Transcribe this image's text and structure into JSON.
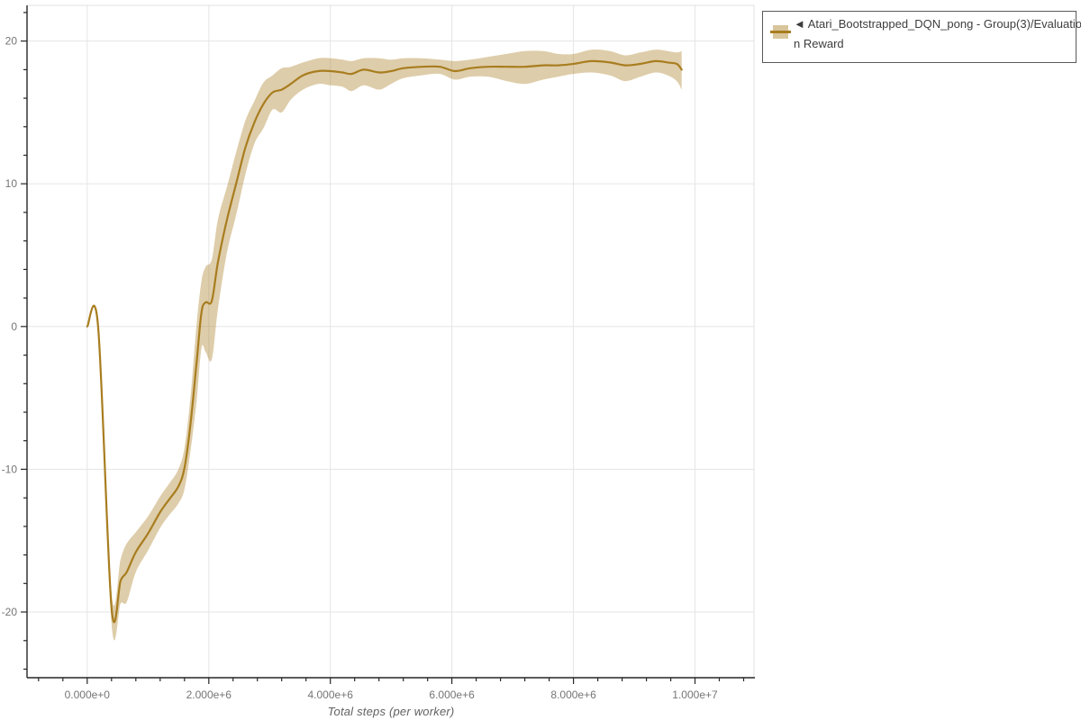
{
  "figure": {
    "background": "#ffffff",
    "grid_color": "#e5e5e5",
    "plot_border_color": "#e0e0e0",
    "axis_color": "#262626",
    "tick_label_color": "#757575",
    "axis_title_color": "#616161"
  },
  "legend": {
    "full_label": "◄ Atari_Bootstrapped_DQN_pong - Group(3)/Evaluation Reward",
    "lines": [
      "◄ Atari_Bootstrapped_DQN_pong - Group(3)/Evaluatio",
      "n Reward"
    ],
    "border_color": "#595959",
    "swatch_band_color": "#d9c59c",
    "swatch_line_color": "#a87d1f"
  },
  "chart_data": {
    "type": "line",
    "title": "",
    "xlabel": "Total steps (per worker)",
    "ylabel": "",
    "legend_position": "top-right-outside",
    "grid": true,
    "xlim_e6": [
      -0.99,
      10.97
    ],
    "ylim": [
      -24.6,
      22.5
    ],
    "x_major_ticks_e6": [
      0,
      2,
      4,
      6,
      8,
      10
    ],
    "x_tick_labels": [
      "0.000e+0",
      "2.000e+6",
      "4.000e+6",
      "6.000e+6",
      "8.000e+6",
      "1.000e+7"
    ],
    "x_minor_step_e6": 0.4,
    "y_major_ticks": [
      -20,
      -10,
      0,
      10,
      20
    ],
    "y_tick_labels": [
      "-20",
      "-10",
      "0",
      "10",
      "20"
    ],
    "y_minor_step": 2,
    "series": [
      {
        "name": "Atari_Bootstrapped_DQN_pong - Group(3)/Evaluation Reward",
        "color": "#a87d1f",
        "band_color": "rgba(169,124,32,0.38)",
        "x_e6": [
          0.0,
          0.18,
          0.4,
          0.55,
          0.65,
          0.8,
          1.0,
          1.2,
          1.35,
          1.5,
          1.6,
          1.7,
          1.8,
          1.88,
          1.95,
          2.05,
          2.15,
          2.3,
          2.45,
          2.6,
          2.75,
          2.9,
          3.05,
          3.2,
          3.35,
          3.55,
          3.8,
          4.0,
          4.2,
          4.35,
          4.55,
          4.8,
          5.0,
          5.2,
          5.5,
          5.8,
          6.05,
          6.3,
          6.6,
          6.9,
          7.2,
          7.5,
          7.75,
          8.0,
          8.3,
          8.6,
          8.85,
          9.1,
          9.35,
          9.55,
          9.7,
          9.78
        ],
        "mean": [
          0,
          0,
          -19.7,
          -17.8,
          -17.2,
          -15.8,
          -14.5,
          -13.0,
          -12.1,
          -11.2,
          -9.9,
          -6.8,
          -2.5,
          1.0,
          1.7,
          1.8,
          4.5,
          7.5,
          10.0,
          12.5,
          14.3,
          15.6,
          16.4,
          16.6,
          17.0,
          17.6,
          17.9,
          17.9,
          17.8,
          17.7,
          18.0,
          17.8,
          17.9,
          18.1,
          18.2,
          18.2,
          17.9,
          18.1,
          18.2,
          18.2,
          18.2,
          18.3,
          18.3,
          18.4,
          18.6,
          18.5,
          18.3,
          18.4,
          18.6,
          18.5,
          18.4,
          18.0
        ],
        "lower": [
          0,
          0,
          -20.8,
          -19.4,
          -19.3,
          -17.2,
          -15.7,
          -14.1,
          -13.2,
          -12.4,
          -11.4,
          -8.7,
          -5.2,
          -1.5,
          -1.8,
          -2.3,
          1.2,
          5.2,
          7.8,
          10.6,
          12.8,
          13.9,
          15.2,
          15.0,
          15.9,
          16.6,
          17.0,
          16.9,
          16.8,
          16.5,
          16.9,
          16.6,
          17.0,
          17.4,
          17.6,
          17.7,
          17.3,
          17.5,
          17.5,
          17.2,
          17.0,
          17.3,
          17.5,
          17.7,
          17.8,
          17.6,
          17.2,
          17.5,
          17.8,
          17.6,
          17.2,
          16.6
        ],
        "upper": [
          0,
          0,
          -18.7,
          -16.3,
          -15.2,
          -14.4,
          -13.3,
          -11.9,
          -11.0,
          -10.0,
          -8.5,
          -4.9,
          0.2,
          3.2,
          4.2,
          4.7,
          7.5,
          9.8,
          12.2,
          14.4,
          15.8,
          17.1,
          17.6,
          18.1,
          18.2,
          18.5,
          18.8,
          18.8,
          18.7,
          18.6,
          18.8,
          18.8,
          18.7,
          18.8,
          18.8,
          18.7,
          18.6,
          18.7,
          18.9,
          19.1,
          19.3,
          19.3,
          19.1,
          19.1,
          19.4,
          19.3,
          19.0,
          19.2,
          19.4,
          19.3,
          19.2,
          19.3
        ]
      }
    ]
  }
}
